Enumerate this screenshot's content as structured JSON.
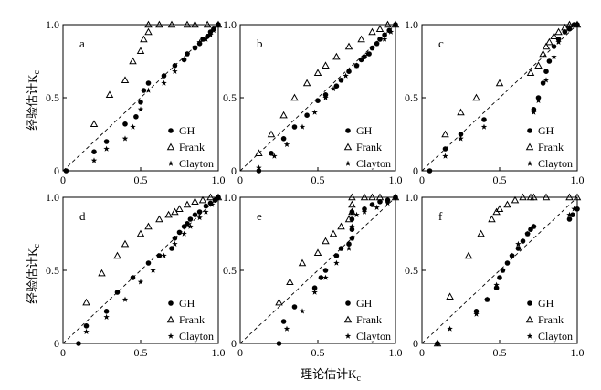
{
  "figure": {
    "ylabel": "经验估计K",
    "ylabel_sub": "c",
    "xlabel": "理论估计K",
    "xlabel_sub": "c"
  },
  "chart_data": [
    {
      "type": "scatter",
      "panel": "a",
      "xlim": [
        0,
        1
      ],
      "ylim": [
        0,
        1
      ],
      "xticks": [
        "0",
        "0.5",
        "1.0"
      ],
      "yticks": [
        "0",
        "0.5",
        "1.0"
      ],
      "reference_line": "y = x (dashed)",
      "legend": [
        "GH",
        "Frank",
        "Clayton"
      ],
      "legend_position": "bottom-right",
      "series": [
        {
          "name": "GH",
          "marker": "circle",
          "x": [
            0.02,
            0.2,
            0.28,
            0.4,
            0.47,
            0.5,
            0.52,
            0.55,
            0.65,
            0.72,
            0.78,
            0.8,
            0.85,
            0.88,
            0.9,
            0.93,
            0.95,
            0.97,
            1.0
          ],
          "y": [
            0.0,
            0.13,
            0.2,
            0.32,
            0.37,
            0.47,
            0.55,
            0.6,
            0.65,
            0.72,
            0.76,
            0.8,
            0.84,
            0.87,
            0.9,
            0.92,
            0.95,
            0.97,
            1.0
          ]
        },
        {
          "name": "Frank",
          "marker": "triangle",
          "x": [
            0.2,
            0.3,
            0.4,
            0.45,
            0.5,
            0.52,
            0.55,
            0.55,
            0.62,
            0.7,
            0.8,
            0.85,
            0.93,
            1.0
          ],
          "y": [
            0.32,
            0.52,
            0.62,
            0.75,
            0.82,
            0.9,
            0.95,
            1.0,
            1.0,
            1.0,
            1.0,
            1.0,
            1.0,
            1.0
          ]
        },
        {
          "name": "Clayton",
          "marker": "star",
          "x": [
            0.2,
            0.28,
            0.4,
            0.45,
            0.5,
            0.55,
            0.65,
            0.72,
            0.8,
            0.85,
            0.88,
            0.92,
            0.95,
            0.97
          ],
          "y": [
            0.07,
            0.15,
            0.22,
            0.3,
            0.42,
            0.55,
            0.6,
            0.68,
            0.8,
            0.85,
            0.88,
            0.9,
            0.93,
            0.96
          ]
        }
      ]
    },
    {
      "type": "scatter",
      "panel": "b",
      "xlim": [
        0,
        1
      ],
      "ylim": [
        0,
        1
      ],
      "xticks": [
        "0",
        "0.5",
        "1.0"
      ],
      "yticks": [
        "0",
        "0.5",
        "1.0"
      ],
      "reference_line": "y = x (dashed)",
      "legend": [
        "GH",
        "Frank",
        "Clayton"
      ],
      "legend_position": "bottom-right",
      "series": [
        {
          "name": "GH",
          "marker": "circle",
          "x": [
            0.12,
            0.2,
            0.28,
            0.35,
            0.43,
            0.5,
            0.55,
            0.62,
            0.65,
            0.7,
            0.75,
            0.78,
            0.8,
            0.83,
            0.85,
            0.88,
            0.9,
            0.93,
            0.96,
            1.0
          ],
          "y": [
            0.0,
            0.12,
            0.22,
            0.3,
            0.38,
            0.48,
            0.52,
            0.58,
            0.62,
            0.68,
            0.72,
            0.76,
            0.78,
            0.8,
            0.84,
            0.87,
            0.9,
            0.93,
            0.96,
            1.0
          ]
        },
        {
          "name": "Frank",
          "marker": "triangle",
          "x": [
            0.12,
            0.2,
            0.28,
            0.35,
            0.43,
            0.5,
            0.55,
            0.62,
            0.7,
            0.78,
            0.85,
            0.9,
            0.95,
            1.0
          ],
          "y": [
            0.12,
            0.25,
            0.38,
            0.5,
            0.6,
            0.67,
            0.72,
            0.78,
            0.85,
            0.9,
            0.95,
            0.97,
            1.0,
            1.0
          ]
        },
        {
          "name": "Clayton",
          "marker": "star",
          "x": [
            0.12,
            0.22,
            0.3,
            0.4,
            0.48,
            0.55,
            0.6,
            0.68,
            0.75,
            0.82,
            0.88,
            0.93,
            0.97
          ],
          "y": [
            0.02,
            0.1,
            0.18,
            0.3,
            0.4,
            0.5,
            0.56,
            0.65,
            0.72,
            0.8,
            0.87,
            0.9,
            0.95
          ]
        }
      ]
    },
    {
      "type": "scatter",
      "panel": "c",
      "xlim": [
        0,
        1
      ],
      "ylim": [
        0,
        1
      ],
      "xticks": [
        "0",
        "0.5",
        "1.0"
      ],
      "yticks": [
        "0",
        "0.5",
        "1.0"
      ],
      "reference_line": "y = x (dashed)",
      "legend": [
        "GH",
        "Frank",
        "Clayton"
      ],
      "legend_position": "bottom-right",
      "series": [
        {
          "name": "GH",
          "marker": "circle",
          "x": [
            0.05,
            0.15,
            0.25,
            0.4,
            0.72,
            0.75,
            0.78,
            0.8,
            0.82,
            0.85,
            0.88,
            0.92,
            0.95,
            0.98,
            1.0
          ],
          "y": [
            0.0,
            0.15,
            0.25,
            0.35,
            0.42,
            0.5,
            0.6,
            0.68,
            0.75,
            0.85,
            0.9,
            0.95,
            0.97,
            1.0,
            1.0
          ]
        },
        {
          "name": "Frank",
          "marker": "triangle",
          "x": [
            0.15,
            0.25,
            0.35,
            0.5,
            0.7,
            0.75,
            0.78,
            0.8,
            0.82,
            0.85,
            0.88,
            0.92,
            0.95,
            1.0
          ],
          "y": [
            0.25,
            0.4,
            0.5,
            0.6,
            0.67,
            0.72,
            0.8,
            0.85,
            0.88,
            0.92,
            0.95,
            0.98,
            1.0,
            1.0
          ]
        },
        {
          "name": "Clayton",
          "marker": "star",
          "x": [
            0.15,
            0.25,
            0.4,
            0.72,
            0.75,
            0.8,
            0.85,
            0.88,
            0.92,
            0.95
          ],
          "y": [
            0.1,
            0.22,
            0.3,
            0.4,
            0.48,
            0.62,
            0.78,
            0.88,
            0.95,
            0.98
          ]
        }
      ]
    },
    {
      "type": "scatter",
      "panel": "d",
      "xlim": [
        0,
        1
      ],
      "ylim": [
        0,
        1
      ],
      "xticks": [
        "0",
        "0.5",
        "1.0"
      ],
      "yticks": [
        "0",
        "0.5",
        "1.0"
      ],
      "reference_line": "y = x (dashed)",
      "legend": [
        "GH",
        "Frank",
        "Clayton"
      ],
      "legend_position": "bottom-right",
      "series": [
        {
          "name": "GH",
          "marker": "circle",
          "x": [
            0.1,
            0.15,
            0.28,
            0.35,
            0.45,
            0.55,
            0.62,
            0.7,
            0.72,
            0.75,
            0.78,
            0.8,
            0.82,
            0.85,
            0.88,
            0.92,
            0.95,
            0.98,
            1.0
          ],
          "y": [
            0.0,
            0.12,
            0.22,
            0.35,
            0.45,
            0.55,
            0.6,
            0.65,
            0.72,
            0.76,
            0.8,
            0.82,
            0.85,
            0.88,
            0.9,
            0.94,
            0.96,
            0.98,
            1.0
          ]
        },
        {
          "name": "Frank",
          "marker": "triangle",
          "x": [
            0.15,
            0.25,
            0.35,
            0.4,
            0.5,
            0.55,
            0.62,
            0.68,
            0.72,
            0.75,
            0.8,
            0.85,
            0.9,
            0.95,
            1.0
          ],
          "y": [
            0.28,
            0.48,
            0.6,
            0.68,
            0.75,
            0.8,
            0.85,
            0.88,
            0.9,
            0.92,
            0.95,
            0.97,
            0.98,
            1.0,
            1.0
          ]
        },
        {
          "name": "Clayton",
          "marker": "star",
          "x": [
            0.15,
            0.28,
            0.4,
            0.5,
            0.58,
            0.65,
            0.72,
            0.78,
            0.82,
            0.88,
            0.92,
            0.96
          ],
          "y": [
            0.08,
            0.18,
            0.3,
            0.42,
            0.5,
            0.6,
            0.68,
            0.75,
            0.8,
            0.86,
            0.9,
            0.95
          ]
        }
      ]
    },
    {
      "type": "scatter",
      "panel": "e",
      "xlim": [
        0,
        1
      ],
      "ylim": [
        0,
        1
      ],
      "xticks": [
        "0",
        "0.5",
        "1.0"
      ],
      "yticks": [
        "0",
        "0.5",
        "1.0"
      ],
      "reference_line": "y = x (dashed)",
      "legend": [
        "GH",
        "Frank",
        "Clayton"
      ],
      "legend_position": "bottom-right",
      "series": [
        {
          "name": "GH",
          "marker": "circle",
          "x": [
            0.25,
            0.28,
            0.35,
            0.48,
            0.52,
            0.55,
            0.62,
            0.65,
            0.7,
            0.72,
            0.72,
            0.72,
            0.72,
            0.8,
            0.85,
            0.9,
            0.95,
            1.0
          ],
          "y": [
            0.0,
            0.15,
            0.25,
            0.38,
            0.45,
            0.5,
            0.6,
            0.65,
            0.68,
            0.72,
            0.78,
            0.85,
            0.9,
            0.92,
            0.95,
            0.97,
            0.98,
            1.0
          ]
        },
        {
          "name": "Frank",
          "marker": "triangle",
          "x": [
            0.25,
            0.32,
            0.4,
            0.5,
            0.55,
            0.6,
            0.65,
            0.7,
            0.72,
            0.72,
            0.72,
            0.8,
            0.85,
            0.9,
            1.0
          ],
          "y": [
            0.28,
            0.42,
            0.55,
            0.62,
            0.7,
            0.75,
            0.8,
            0.85,
            0.9,
            0.95,
            1.0,
            1.0,
            1.0,
            1.0,
            1.0
          ]
        },
        {
          "name": "Clayton",
          "marker": "star",
          "x": [
            0.3,
            0.4,
            0.48,
            0.55,
            0.62,
            0.7,
            0.72,
            0.72,
            0.75,
            0.8,
            0.88,
            0.95
          ],
          "y": [
            0.1,
            0.22,
            0.35,
            0.45,
            0.55,
            0.65,
            0.72,
            0.8,
            0.88,
            0.9,
            0.93,
            0.96
          ]
        }
      ]
    },
    {
      "type": "scatter",
      "panel": "f",
      "xlim": [
        0,
        1
      ],
      "ylim": [
        0,
        1
      ],
      "xticks": [
        "0",
        "0.5",
        "1.0"
      ],
      "yticks": [
        "0",
        "0.5",
        "1.0"
      ],
      "reference_line": "y = x (dashed)",
      "legend": [
        "GH",
        "Frank",
        "Clayton"
      ],
      "legend_position": "bottom-right",
      "series": [
        {
          "name": "GH",
          "marker": "circle",
          "x": [
            0.1,
            0.35,
            0.42,
            0.48,
            0.5,
            0.52,
            0.55,
            0.58,
            0.62,
            0.65,
            0.68,
            0.7,
            0.72,
            0.95,
            0.97,
            1.0
          ],
          "y": [
            0.0,
            0.22,
            0.3,
            0.38,
            0.45,
            0.5,
            0.55,
            0.6,
            0.65,
            0.7,
            0.75,
            0.78,
            0.8,
            0.85,
            0.88,
            0.92
          ]
        },
        {
          "name": "Frank",
          "marker": "triangle",
          "x": [
            0.1,
            0.18,
            0.3,
            0.38,
            0.45,
            0.48,
            0.5,
            0.55,
            0.6,
            0.65,
            0.7,
            0.72,
            0.8,
            0.95,
            1.0
          ],
          "y": [
            0.0,
            0.32,
            0.6,
            0.75,
            0.85,
            0.9,
            0.92,
            0.95,
            0.98,
            1.0,
            1.0,
            1.0,
            1.0,
            1.0,
            1.0
          ]
        },
        {
          "name": "Clayton",
          "marker": "star",
          "x": [
            0.18,
            0.35,
            0.42,
            0.48,
            0.52,
            0.58,
            0.62,
            0.68,
            0.72,
            0.95,
            0.98
          ],
          "y": [
            0.1,
            0.2,
            0.3,
            0.4,
            0.5,
            0.6,
            0.68,
            0.75,
            0.8,
            0.88,
            0.92
          ]
        }
      ]
    }
  ]
}
